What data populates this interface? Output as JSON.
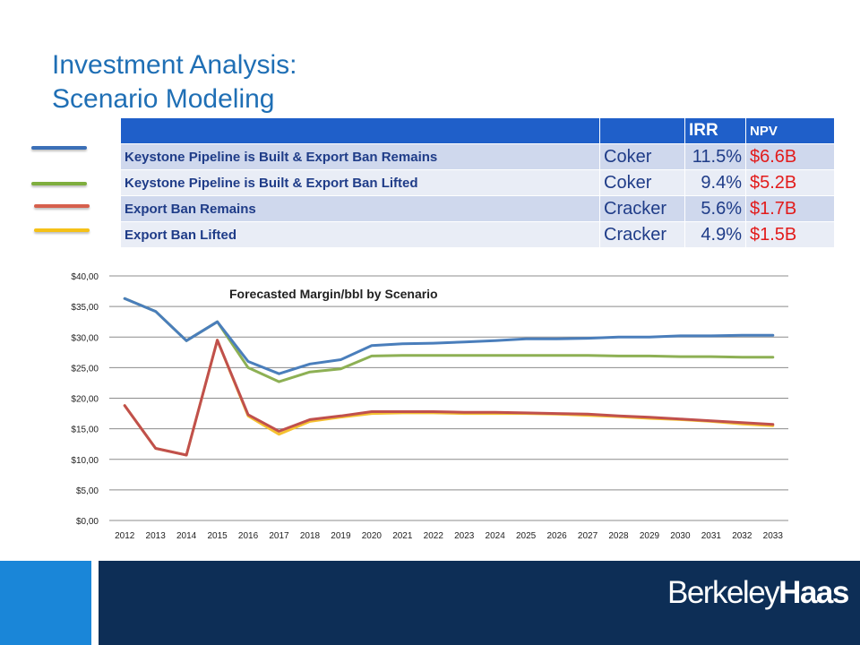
{
  "slide": {
    "title_line1": "Investment Analysis:",
    "title_line2": "Scenario Modeling"
  },
  "table": {
    "headers": [
      "",
      "",
      "IRR",
      "NPV"
    ],
    "rows": [
      {
        "scenario": "Keystone Pipeline is Built & Export Ban Remains",
        "tech": "Coker",
        "irr": "11.5%",
        "npv": "$6.6B",
        "color": "#3b6fb7"
      },
      {
        "scenario": "Keystone Pipeline is Built & Export Ban Lifted",
        "tech": "Coker",
        "irr": "9.4%",
        "npv": "$5.2B",
        "color": "#7fae3e"
      },
      {
        "scenario": "Export Ban Remains",
        "tech": "Cracker",
        "irr": "5.6%",
        "npv": "$1.7B",
        "color": "#d6604d"
      },
      {
        "scenario": "Export Ban Lifted",
        "tech": "Cracker",
        "irr": "4.9%",
        "npv": "$1.5B",
        "color": "#f5c118"
      }
    ]
  },
  "chart_data": {
    "type": "line",
    "title": "Forecasted Margin/bbl by Scenario",
    "xlabel": "",
    "ylabel": "",
    "ylim": [
      0,
      40
    ],
    "y_ticks": [
      "$0,00",
      "$5,00",
      "$10,00",
      "$15,00",
      "$20,00",
      "$25,00",
      "$30,00",
      "$35,00",
      "$40,00"
    ],
    "x": [
      "2012",
      "2013",
      "2014",
      "2015",
      "2016",
      "2017",
      "2018",
      "2019",
      "2020",
      "2021",
      "2022",
      "2023",
      "2024",
      "2025",
      "2026",
      "2027",
      "2028",
      "2029",
      "2030",
      "2031",
      "2032",
      "2033"
    ],
    "grid": true,
    "series": [
      {
        "color": "#4a7ebb",
        "values": [
          36.3,
          34.2,
          29.4,
          32.5,
          26.0,
          24.0,
          25.6,
          26.3,
          28.6,
          28.9,
          29.0,
          29.2,
          29.4,
          29.7,
          29.7,
          29.8,
          30.0,
          30.0,
          30.2,
          30.2,
          30.3,
          30.3
        ]
      },
      {
        "color": "#8db054",
        "values": [
          36.3,
          34.2,
          29.4,
          32.5,
          25.0,
          22.7,
          24.3,
          24.8,
          26.9,
          27.0,
          27.0,
          27.0,
          27.0,
          27.0,
          27.0,
          27.0,
          26.9,
          26.9,
          26.8,
          26.8,
          26.7,
          26.7
        ]
      },
      {
        "color": "#c0504d",
        "values": [
          18.8,
          11.8,
          10.7,
          29.5,
          17.3,
          14.6,
          16.5,
          17.1,
          17.8,
          17.8,
          17.8,
          17.7,
          17.7,
          17.6,
          17.5,
          17.4,
          17.1,
          16.9,
          16.6,
          16.3,
          16.0,
          15.7
        ]
      },
      {
        "color": "#f5c130",
        "values": [
          18.8,
          11.8,
          10.7,
          29.5,
          17.1,
          14.1,
          16.2,
          16.9,
          17.5,
          17.6,
          17.6,
          17.5,
          17.5,
          17.5,
          17.4,
          17.2,
          17.0,
          16.7,
          16.5,
          16.2,
          15.8,
          15.5
        ]
      }
    ]
  },
  "logo": {
    "part1": "Berkeley",
    "part2": "Haas"
  }
}
